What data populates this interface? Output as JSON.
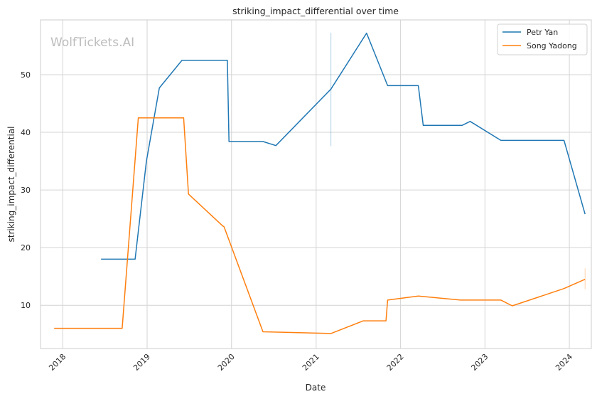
{
  "chart_data": {
    "type": "line",
    "title": "striking_impact_differential over time",
    "xlabel": "Date",
    "ylabel": "striking_impact_differential",
    "xlim": [
      "2017-09-27",
      "2024-04-05"
    ],
    "ylim": [
      2.5,
      59.5
    ],
    "x_ticks": [
      "2018",
      "2019",
      "2020",
      "2021",
      "2022",
      "2023",
      "2024"
    ],
    "y_ticks": [
      10,
      20,
      30,
      40,
      50
    ],
    "grid": true,
    "legend_position": "top-right",
    "watermark": "WolfTickets.AI",
    "series": [
      {
        "name": "Petr Yan",
        "color": "#1f77b4",
        "points": [
          [
            "2018-06-16",
            18.0
          ],
          [
            "2018-11-10",
            18.0
          ],
          [
            "2018-12-29",
            35.0
          ],
          [
            "2019-02-23",
            47.7
          ],
          [
            "2019-06-01",
            52.5
          ],
          [
            "2019-12-14",
            52.5
          ],
          [
            "2019-12-21",
            38.4
          ],
          [
            "2020-05-16",
            38.4
          ],
          [
            "2020-07-11",
            37.7
          ],
          [
            "2021-03-06",
            47.5
          ],
          [
            "2021-08-07",
            57.2
          ],
          [
            "2021-11-06",
            48.1
          ],
          [
            "2022-03-19",
            48.1
          ],
          [
            "2022-04-09",
            41.2
          ],
          [
            "2022-09-24",
            41.2
          ],
          [
            "2022-10-29",
            41.9
          ],
          [
            "2023-03-11",
            38.6
          ],
          [
            "2023-12-09",
            38.6
          ],
          [
            "2024-03-09",
            25.8
          ]
        ]
      },
      {
        "name": "Song Yadong",
        "color": "#ff7f0e",
        "points": [
          [
            "2017-11-25",
            6.0
          ],
          [
            "2018-09-15",
            6.0
          ],
          [
            "2018-11-24",
            42.5
          ],
          [
            "2019-06-08",
            42.5
          ],
          [
            "2019-06-29",
            29.3
          ],
          [
            "2019-11-23",
            23.8
          ],
          [
            "2019-11-30",
            23.6
          ],
          [
            "2020-05-16",
            5.4
          ],
          [
            "2021-03-06",
            5.1
          ],
          [
            "2021-07-24",
            7.3
          ],
          [
            "2021-10-30",
            7.3
          ],
          [
            "2021-11-06",
            10.9
          ],
          [
            "2022-03-19",
            11.6
          ],
          [
            "2022-09-17",
            10.9
          ],
          [
            "2023-03-11",
            10.9
          ],
          [
            "2023-04-29",
            9.9
          ],
          [
            "2023-12-09",
            12.9
          ],
          [
            "2024-03-09",
            14.5
          ]
        ]
      }
    ],
    "error_bars": [
      {
        "series": "Petr Yan",
        "x": "2021-03-06",
        "low": 37.6,
        "high": 57.3
      },
      {
        "series": "Song Yadong",
        "x": "2024-03-09",
        "low": 12.8,
        "high": 16.4
      }
    ]
  }
}
